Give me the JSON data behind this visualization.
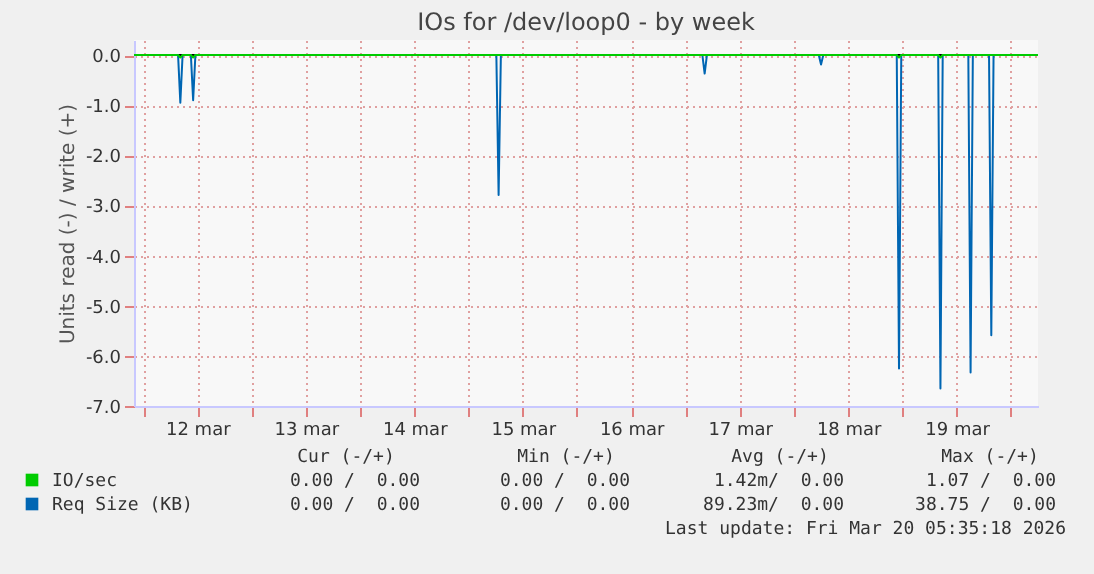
{
  "chart_data": {
    "type": "line",
    "title": "IOs for /dev/loop0 - by week",
    "ylabel": "Units read (-) / write (+)",
    "xlim": [
      "2026-03-11T22:00",
      "2026-03-20T06:00"
    ],
    "xticks": [
      {
        "value": "2026-03-12T00:00",
        "label": null
      },
      {
        "value": "2026-03-12T12:00",
        "label": "12 mar"
      },
      {
        "value": "2026-03-13T00:00",
        "label": null
      },
      {
        "value": "2026-03-13T12:00",
        "label": "13 mar"
      },
      {
        "value": "2026-03-14T00:00",
        "label": null
      },
      {
        "value": "2026-03-14T12:00",
        "label": "14 mar"
      },
      {
        "value": "2026-03-15T00:00",
        "label": null
      },
      {
        "value": "2026-03-15T12:00",
        "label": "15 mar"
      },
      {
        "value": "2026-03-16T00:00",
        "label": null
      },
      {
        "value": "2026-03-16T12:00",
        "label": "16 mar"
      },
      {
        "value": "2026-03-17T00:00",
        "label": null
      },
      {
        "value": "2026-03-17T12:00",
        "label": "17 mar"
      },
      {
        "value": "2026-03-18T00:00",
        "label": null
      },
      {
        "value": "2026-03-18T12:00",
        "label": "18 mar"
      },
      {
        "value": "2026-03-19T00:00",
        "label": null
      },
      {
        "value": "2026-03-19T12:00",
        "label": "19 mar"
      },
      {
        "value": "2026-03-20T00:00",
        "label": null
      }
    ],
    "ylim": [
      -7,
      0.3
    ],
    "yticks": [
      {
        "value": -7,
        "label": "-7.0"
      },
      {
        "value": -6,
        "label": "-6.0"
      },
      {
        "value": -5,
        "label": "-5.0"
      },
      {
        "value": -4,
        "label": "-4.0"
      },
      {
        "value": -3,
        "label": "-3.0"
      },
      {
        "value": -2,
        "label": "-2.0"
      },
      {
        "value": -1,
        "label": "-1.0"
      },
      {
        "value": 0,
        "label": "0.0"
      }
    ],
    "grid": true,
    "legend": "bottom",
    "line_style": "solid",
    "marker": "none",
    "ref_lines": [
      {
        "axis": "y",
        "value": 0,
        "color": "#000000"
      }
    ],
    "series": [
      {
        "name": "IO/sec",
        "color": "#00cc00",
        "x": [
          "2026-03-11T22:00",
          "2026-03-12T07:45",
          "2026-03-12T08:15",
          "2026-03-12T08:45",
          "2026-03-12T10:35",
          "2026-03-12T11:05",
          "2026-03-12T11:35",
          "2026-03-18T22:45",
          "2026-03-18T23:15",
          "2026-03-18T23:45",
          "2026-03-19T07:55",
          "2026-03-19T08:25",
          "2026-03-19T08:55",
          "2026-03-20T06:00"
        ],
        "values": [
          0,
          0,
          -0.05,
          0,
          0,
          -0.05,
          0,
          0,
          -0.05,
          0,
          0,
          -0.05,
          0,
          0
        ]
      },
      {
        "name": "Req Size (KB)",
        "color": "#0066b3",
        "x": [
          "2026-03-11T22:00",
          "2026-03-12T07:45",
          "2026-03-12T08:15",
          "2026-03-12T08:45",
          "2026-03-12T10:35",
          "2026-03-12T11:05",
          "2026-03-12T11:35",
          "2026-03-15T06:10",
          "2026-03-15T06:40",
          "2026-03-15T07:10",
          "2026-03-17T03:45",
          "2026-03-17T04:15",
          "2026-03-17T04:45",
          "2026-03-18T05:30",
          "2026-03-18T06:00",
          "2026-03-18T06:30",
          "2026-03-18T22:45",
          "2026-03-18T23:15",
          "2026-03-18T23:45",
          "2026-03-19T07:55",
          "2026-03-19T08:25",
          "2026-03-19T08:55",
          "2026-03-19T14:35",
          "2026-03-19T15:05",
          "2026-03-19T15:35",
          "2026-03-19T19:10",
          "2026-03-19T19:40",
          "2026-03-19T20:10",
          "2026-03-20T06:00"
        ],
        "values": [
          0,
          0,
          -0.95,
          0,
          0,
          -0.9,
          0,
          0,
          -2.79,
          0,
          0,
          -0.37,
          0,
          0,
          -0.19,
          0,
          0,
          -6.25,
          0,
          0,
          -6.65,
          0,
          0,
          -6.33,
          0,
          0,
          -5.59,
          0,
          0
        ]
      }
    ],
    "annotations": [
      "Cur (-/+)",
      "Min (-/+)",
      "Avg (-/+)",
      "Max (-/+)",
      "0.00 /  0.00",
      "0.00 /  0.00",
      "1.42m/  0.00",
      "1.07 /  0.00",
      "0.00 /  0.00",
      "0.00 /  0.00",
      "89.23m/  0.00",
      "38.75 /  0.00",
      "Last update: Fri Mar 20 05:35:18 2026"
    ]
  }
}
